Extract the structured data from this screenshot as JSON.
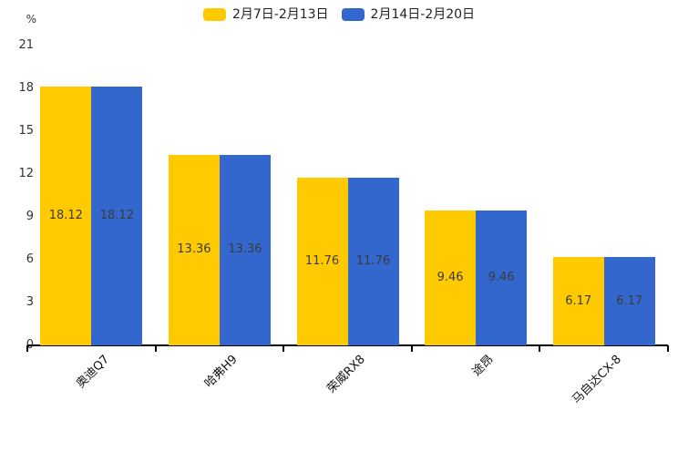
{
  "legend": [
    {
      "label": "2月7日-2月13日",
      "color": "#FFCB00"
    },
    {
      "label": "2月14日-2月20日",
      "color": "#3467CD"
    }
  ],
  "chart_data": {
    "type": "bar",
    "title": "",
    "categories": [
      "奥迪Q7",
      "哈弗H9",
      "荣威RX8",
      "途昂",
      "马自达CX-8"
    ],
    "series": [
      {
        "name": "2月7日-2月13日",
        "color": "#FFCB00",
        "values": [
          18.12,
          13.36,
          11.76,
          9.46,
          6.17
        ]
      },
      {
        "name": "2月14日-2月20日",
        "color": "#3467CD",
        "values": [
          18.12,
          13.36,
          11.76,
          9.46,
          6.17
        ]
      }
    ],
    "xlabel": "",
    "ylabel": "%",
    "ylim": [
      0,
      21
    ],
    "ytick_step": 3,
    "yticks": [
      0,
      3,
      6,
      9,
      12,
      15,
      18,
      21
    ],
    "grid": false,
    "legend_position": "top",
    "value_labels": true,
    "value_label_format": "2-decimals",
    "xlabel_rotation_deg": 45,
    "axis_color": "#000000",
    "label_color": "#3b3b3b"
  }
}
